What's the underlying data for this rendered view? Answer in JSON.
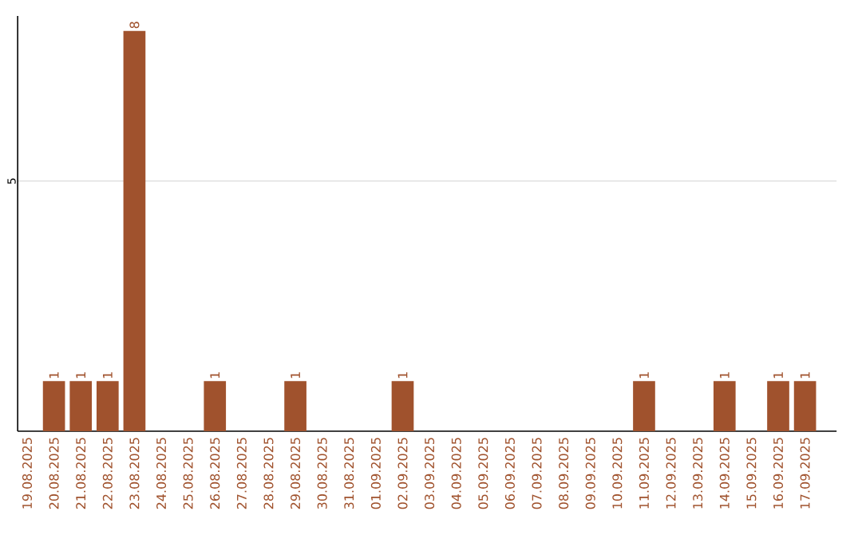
{
  "chart_data": {
    "type": "bar",
    "categories": [
      "19.08.2025",
      "20.08.2025",
      "21.08.2025",
      "22.08.2025",
      "23.08.2025",
      "24.08.2025",
      "25.08.2025",
      "26.08.2025",
      "27.08.2025",
      "28.08.2025",
      "29.08.2025",
      "30.08.2025",
      "31.08.2025",
      "01.09.2025",
      "02.09.2025",
      "03.09.2025",
      "04.09.2025",
      "05.09.2025",
      "06.09.2025",
      "07.09.2025",
      "08.09.2025",
      "09.09.2025",
      "10.09.2025",
      "11.09.2025",
      "12.09.2025",
      "13.09.2025",
      "14.09.2025",
      "15.09.2025",
      "16.09.2025",
      "17.09.2025"
    ],
    "values": [
      null,
      1,
      1,
      1,
      8,
      null,
      null,
      1,
      null,
      null,
      1,
      null,
      null,
      null,
      1,
      null,
      null,
      null,
      null,
      null,
      null,
      null,
      null,
      1,
      null,
      null,
      1,
      null,
      1,
      1
    ],
    "color": "#a0522d",
    "ylim": [
      0,
      8.3
    ],
    "yticks": [
      5
    ],
    "grid": "y",
    "data_labels": true
  }
}
